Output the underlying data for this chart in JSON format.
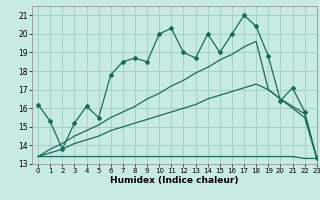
{
  "xlabel": "Humidex (Indice chaleur)",
  "xlim": [
    -0.5,
    23
  ],
  "ylim": [
    13,
    21.5
  ],
  "xticks": [
    0,
    1,
    2,
    3,
    4,
    5,
    6,
    7,
    8,
    9,
    10,
    11,
    12,
    13,
    14,
    15,
    16,
    17,
    18,
    19,
    20,
    21,
    22,
    23
  ],
  "yticks": [
    13,
    14,
    15,
    16,
    17,
    18,
    19,
    20,
    21
  ],
  "bg_color": "#c8eae4",
  "grid_color": "#a0ccc4",
  "line_color": "#1a6b5a",
  "line1_x": [
    0,
    1,
    2,
    3,
    4,
    5,
    6,
    7,
    8,
    9,
    10,
    11,
    12,
    13,
    14,
    15,
    16,
    17,
    18,
    19,
    20,
    21,
    22,
    23
  ],
  "line1_y": [
    16.2,
    15.3,
    13.8,
    15.2,
    16.1,
    15.5,
    17.8,
    18.5,
    18.7,
    18.5,
    20.0,
    20.3,
    19.0,
    18.7,
    20.0,
    19.0,
    20.0,
    21.0,
    20.4,
    18.8,
    16.4,
    17.1,
    15.8,
    13.3
  ],
  "line2_x": [
    0,
    1,
    2,
    3,
    4,
    5,
    6,
    7,
    8,
    9,
    10,
    11,
    12,
    13,
    14,
    15,
    16,
    17,
    18,
    19,
    20,
    21,
    22,
    23
  ],
  "line2_y": [
    13.4,
    13.4,
    13.4,
    13.4,
    13.4,
    13.4,
    13.4,
    13.4,
    13.4,
    13.4,
    13.4,
    13.4,
    13.4,
    13.4,
    13.4,
    13.4,
    13.4,
    13.4,
    13.4,
    13.4,
    13.4,
    13.4,
    13.3,
    13.3
  ],
  "line3_x": [
    0,
    1,
    2,
    3,
    4,
    5,
    6,
    7,
    8,
    9,
    10,
    11,
    12,
    13,
    14,
    15,
    16,
    17,
    18,
    19,
    20,
    21,
    22,
    23
  ],
  "line3_y": [
    13.4,
    13.6,
    13.8,
    14.1,
    14.3,
    14.5,
    14.8,
    15.0,
    15.2,
    15.4,
    15.6,
    15.8,
    16.0,
    16.2,
    16.5,
    16.7,
    16.9,
    17.1,
    17.3,
    17.0,
    16.5,
    16.1,
    15.7,
    13.3
  ],
  "line4_x": [
    0,
    1,
    2,
    3,
    4,
    5,
    6,
    7,
    8,
    9,
    10,
    11,
    12,
    13,
    14,
    15,
    16,
    17,
    18,
    19,
    20,
    21,
    22,
    23
  ],
  "line4_y": [
    13.4,
    13.8,
    14.1,
    14.5,
    14.8,
    15.1,
    15.5,
    15.8,
    16.1,
    16.5,
    16.8,
    17.2,
    17.5,
    17.9,
    18.2,
    18.6,
    18.9,
    19.3,
    19.6,
    17.0,
    16.5,
    16.0,
    15.5,
    13.3
  ]
}
